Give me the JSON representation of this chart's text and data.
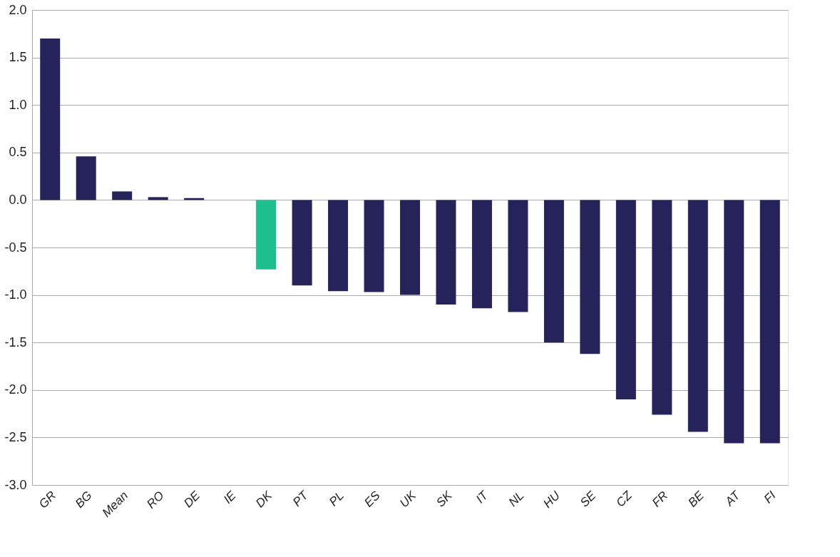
{
  "chart_data": {
    "type": "bar",
    "categories": [
      "GR",
      "BG",
      "Mean",
      "RO",
      "DE",
      "IE",
      "DK",
      "PT",
      "PL",
      "ES",
      "UK",
      "SK",
      "IT",
      "NL",
      "HU",
      "SE",
      "CZ",
      "FR",
      "BE",
      "AT",
      "FI"
    ],
    "values": [
      1.7,
      0.46,
      0.09,
      0.03,
      0.02,
      0,
      -0.73,
      -0.9,
      -0.96,
      -0.97,
      -1.0,
      -1.1,
      -1.14,
      -1.18,
      -1.5,
      -1.62,
      -2.1,
      -2.26,
      -2.44,
      -2.56,
      -2.56
    ],
    "colors": [
      "#26235b",
      "#26235b",
      "#26235b",
      "#26235b",
      "#26235b",
      "#26235b",
      "#1dbf8f",
      "#26235b",
      "#26235b",
      "#26235b",
      "#26235b",
      "#26235b",
      "#26235b",
      "#26235b",
      "#26235b",
      "#26235b",
      "#26235b",
      "#26235b",
      "#26235b",
      "#26235b",
      "#26235b"
    ],
    "ylim": [
      -3.0,
      2.0
    ],
    "yticks": [
      {
        "value": -3,
        "label": "-3.0"
      },
      {
        "value": -2.5,
        "label": "-2.5"
      },
      {
        "value": -2,
        "label": "-2.0"
      },
      {
        "value": -1.5,
        "label": "-1.5"
      },
      {
        "value": -1,
        "label": "-1.0"
      },
      {
        "value": -0.5,
        "label": "-0.5"
      },
      {
        "value": 0,
        "label": "0.0"
      },
      {
        "value": 0.5,
        "label": "0.5"
      },
      {
        "value": 1,
        "label": "1.0"
      },
      {
        "value": 1.5,
        "label": "1.5"
      },
      {
        "value": 2,
        "label": "2.0"
      }
    ],
    "grid": "y"
  }
}
